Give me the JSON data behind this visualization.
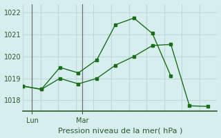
{
  "background_color": "#d6eeee",
  "grid_color": "#c0d8d8",
  "line_color": "#1a6e1a",
  "ylim": [
    1017.5,
    1022.4
  ],
  "yticks": [
    1018,
    1019,
    1020,
    1021,
    1022
  ],
  "ylabel_fontsize": 7,
  "series1_x": [
    0,
    1,
    2,
    3,
    4,
    5,
    6,
    7,
    8
  ],
  "series1_y": [
    1018.65,
    1018.5,
    1019.5,
    1019.25,
    1019.85,
    1021.45,
    1021.75,
    1021.05,
    1019.1
  ],
  "series2_x": [
    0,
    1,
    2,
    3,
    4,
    5,
    6,
    7,
    8,
    9,
    10
  ],
  "series2_y": [
    1018.65,
    1018.5,
    1019.0,
    1018.75,
    1019.0,
    1019.6,
    1020.0,
    1020.5,
    1020.55,
    1017.75,
    1017.72
  ],
  "vline1_x": 0.5,
  "vline2_x": 3.2,
  "xtick_positions": [
    0.5,
    3.2
  ],
  "xtick_labels": [
    "Lun",
    "Mar"
  ],
  "num_xgrid": 12,
  "xlabel": "Pression niveau de la mer( hPa )",
  "xlabel_fontsize": 8
}
